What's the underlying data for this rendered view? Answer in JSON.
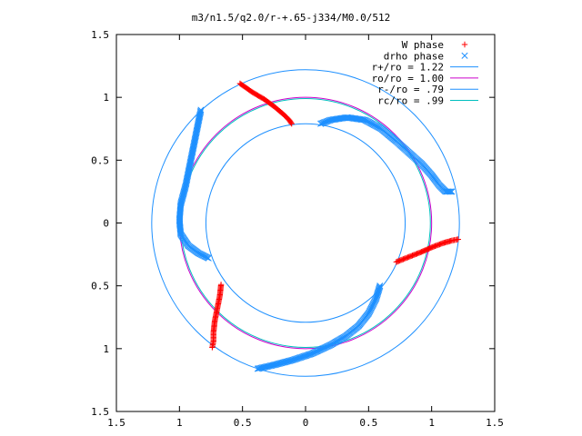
{
  "chart_data": {
    "type": "scatter",
    "title": "m3/n1.5/q2.0/r-+.65-j334/M0.0/512",
    "xlabel": "",
    "ylabel": "",
    "xlim": [
      -1.5,
      1.5
    ],
    "ylim": [
      -1.5,
      1.5
    ],
    "x_tick_values": [
      -1.5,
      -1,
      -0.5,
      0,
      0.5,
      1,
      1.5
    ],
    "x_tick_labels": [
      "1.5",
      "1",
      "0.5",
      "0",
      "0.5",
      "1",
      "1.5"
    ],
    "y_tick_values": [
      1.5,
      1,
      0.5,
      0,
      -0.5,
      -1,
      -1.5
    ],
    "y_tick_labels": [
      "1.5",
      "1",
      "0.5",
      "0",
      "0.5",
      "1",
      "1.5"
    ],
    "grid": false,
    "legend_position": "top-right",
    "colors": {
      "w_phase": "#ff0000",
      "drho_phase": "#1e90ff",
      "r_plus": "#1e90ff",
      "ro": "#cc00cc",
      "r_minus": "#1e90ff",
      "rc": "#00bfbf"
    },
    "circles": [
      {
        "name": "r+/ro = 1.22",
        "radius": 1.22,
        "color": "#1e90ff"
      },
      {
        "name": "ro/ro = 1.00",
        "radius": 1.0,
        "color": "#cc00cc"
      },
      {
        "name": "r-/ro = .79",
        "radius": 0.79,
        "color": "#1e90ff"
      },
      {
        "name": "rc/ro = .99",
        "radius": 0.99,
        "color": "#00bfbf"
      }
    ],
    "series": [
      {
        "name": "W phase",
        "marker": "+",
        "color": "#ff0000",
        "arms": [
          [
            [
              -0.52,
              1.11
            ],
            [
              -0.42,
              1.04
            ],
            [
              -0.32,
              0.98
            ],
            [
              -0.24,
              0.92
            ],
            [
              -0.17,
              0.86
            ],
            [
              -0.13,
              0.82
            ],
            [
              -0.11,
              0.79
            ]
          ],
          [
            [
              0.72,
              -0.31
            ],
            [
              0.82,
              -0.27
            ],
            [
              0.92,
              -0.23
            ],
            [
              1.01,
              -0.19
            ],
            [
              1.09,
              -0.16
            ],
            [
              1.16,
              -0.14
            ],
            [
              1.21,
              -0.13
            ]
          ],
          [
            [
              -0.67,
              -0.49
            ],
            [
              -0.68,
              -0.58
            ],
            [
              -0.7,
              -0.68
            ],
            [
              -0.72,
              -0.78
            ],
            [
              -0.73,
              -0.87
            ],
            [
              -0.73,
              -0.94
            ],
            [
              -0.74,
              -0.99
            ]
          ]
        ]
      },
      {
        "name": "drho phase",
        "marker": "x",
        "color": "#1e90ff",
        "arms": [
          [
            [
              -0.83,
              0.9
            ],
            [
              -0.86,
              0.75
            ],
            [
              -0.89,
              0.6
            ],
            [
              -0.92,
              0.45
            ],
            [
              -0.95,
              0.3
            ],
            [
              -0.99,
              0.15
            ],
            [
              -1.0,
              0.02
            ],
            [
              -0.99,
              -0.09
            ],
            [
              -0.93,
              -0.18
            ],
            [
              -0.85,
              -0.24
            ],
            [
              -0.77,
              -0.28
            ]
          ],
          [
            [
              0.12,
              0.79
            ],
            [
              0.2,
              0.82
            ],
            [
              0.33,
              0.84
            ],
            [
              0.47,
              0.82
            ],
            [
              0.6,
              0.75
            ],
            [
              0.72,
              0.65
            ],
            [
              0.82,
              0.56
            ],
            [
              0.92,
              0.47
            ],
            [
              1.0,
              0.38
            ],
            [
              1.06,
              0.3
            ],
            [
              1.11,
              0.25
            ],
            [
              1.16,
              0.25
            ]
          ],
          [
            [
              0.59,
              -0.5
            ],
            [
              0.56,
              -0.6
            ],
            [
              0.5,
              -0.72
            ],
            [
              0.42,
              -0.82
            ],
            [
              0.32,
              -0.9
            ],
            [
              0.2,
              -0.97
            ],
            [
              0.05,
              -1.04
            ],
            [
              -0.1,
              -1.09
            ],
            [
              -0.25,
              -1.13
            ],
            [
              -0.38,
              -1.16
            ]
          ]
        ]
      }
    ]
  }
}
